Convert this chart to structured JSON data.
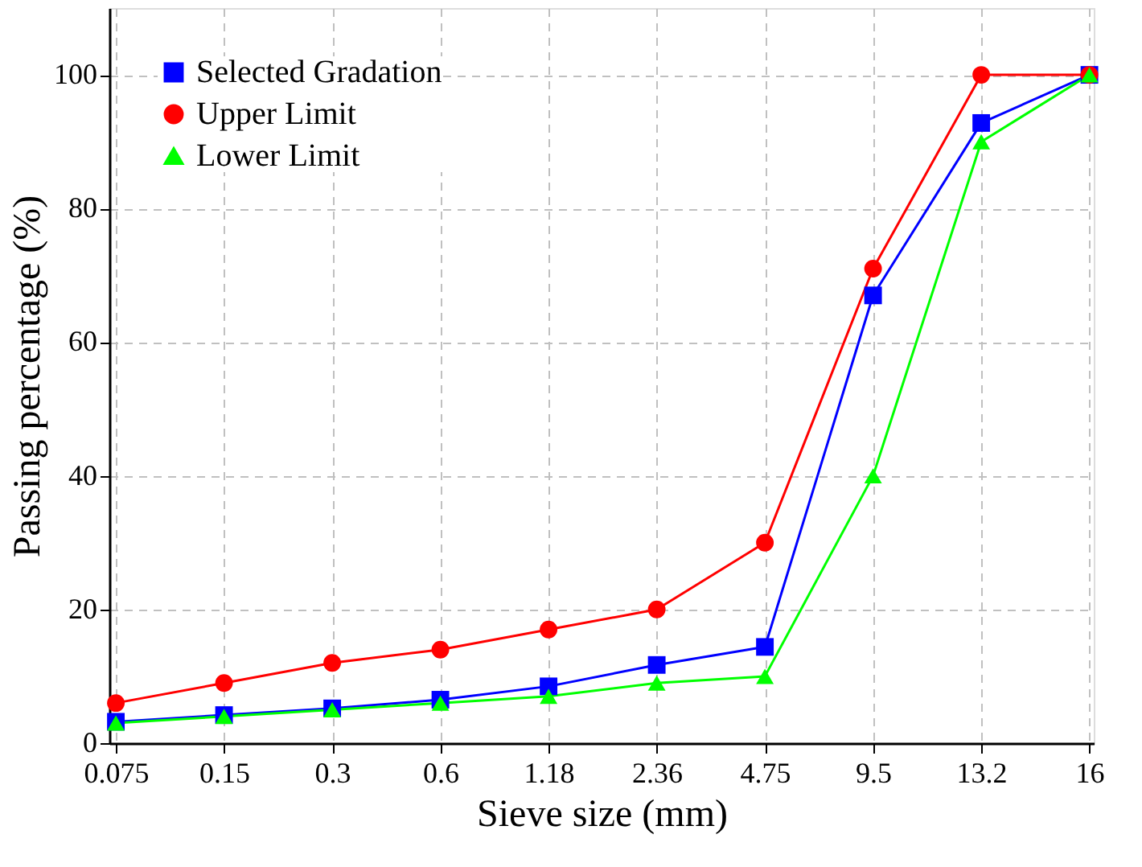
{
  "chart_data": {
    "type": "line",
    "xlabel": "Sieve size (mm)",
    "ylabel": "Passing percentage (%)",
    "categories": [
      "0.075",
      "0.15",
      "0.3",
      "0.6",
      "1.18",
      "2.36",
      "4.75",
      "9.5",
      "13.2",
      "16"
    ],
    "series": [
      {
        "name": "Selected Gradation",
        "color": "#0000ff",
        "marker": "square",
        "values": [
          3.2,
          4.2,
          5.2,
          6.5,
          8.5,
          11.7,
          14.4,
          67,
          92.8,
          100
        ]
      },
      {
        "name": "Upper Limit",
        "color": "#ff0000",
        "marker": "circle",
        "values": [
          6,
          9,
          12,
          14,
          17,
          20,
          30,
          71,
          100,
          100
        ]
      },
      {
        "name": "Lower Limit",
        "color": "#00ff00",
        "marker": "triangle",
        "values": [
          3,
          4,
          5,
          6,
          7,
          9,
          10,
          40,
          90,
          100
        ]
      }
    ],
    "ylim": [
      0,
      110
    ],
    "yticks": [
      0,
      20,
      40,
      60,
      80,
      100
    ],
    "grid": true,
    "legend": "top left",
    "line_style": "solid"
  }
}
